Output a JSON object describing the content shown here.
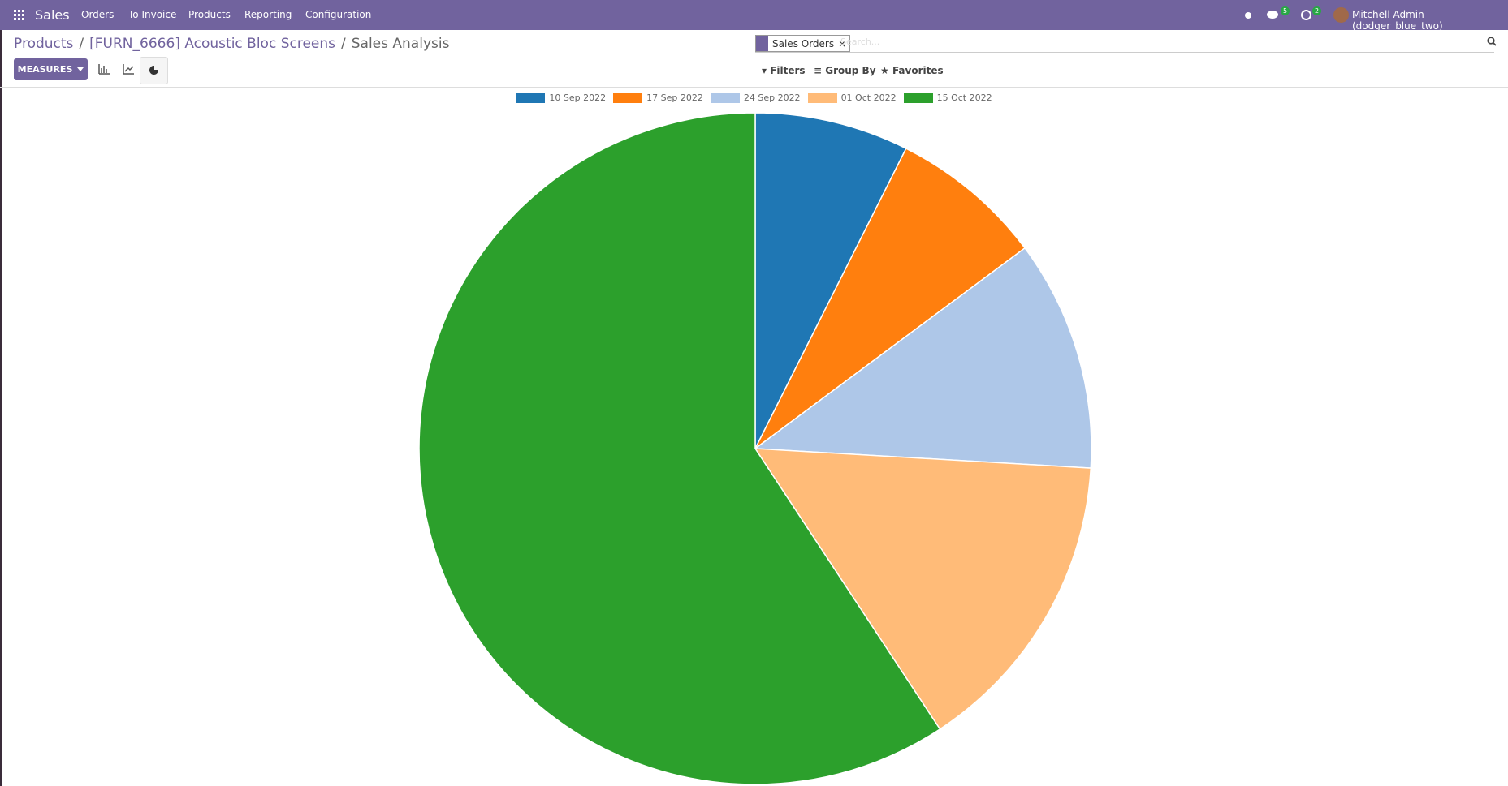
{
  "nav": {
    "app": "Sales",
    "menu": [
      "Orders",
      "To Invoice",
      "Products",
      "Reporting",
      "Configuration"
    ],
    "badges": [
      5,
      2
    ],
    "user": "Mitchell Admin (dodger_blue_two)"
  },
  "breadcrumb": {
    "items": [
      "Products",
      "[FURN_6666] Acoustic Bloc Screens",
      "Sales Analysis"
    ],
    "separator": "/"
  },
  "controls": {
    "measures": "MEASURES",
    "facet": "Sales Orders",
    "search_placeholder": "Search...",
    "filters": "Filters",
    "group_by": "Group By",
    "favorites": "Favorites"
  },
  "chart_data": {
    "type": "pie",
    "categories": [
      "10 Sep 2022",
      "17 Sep 2022",
      "24 Sep 2022",
      "01 Oct 2022",
      "15 Oct 2022"
    ],
    "values": [
      2,
      2,
      3,
      4,
      16
    ],
    "colors": [
      "#1f77b4",
      "#ff7f0e",
      "#aec7e8",
      "#ffbb78",
      "#2ca02c"
    ],
    "legend": "top"
  }
}
